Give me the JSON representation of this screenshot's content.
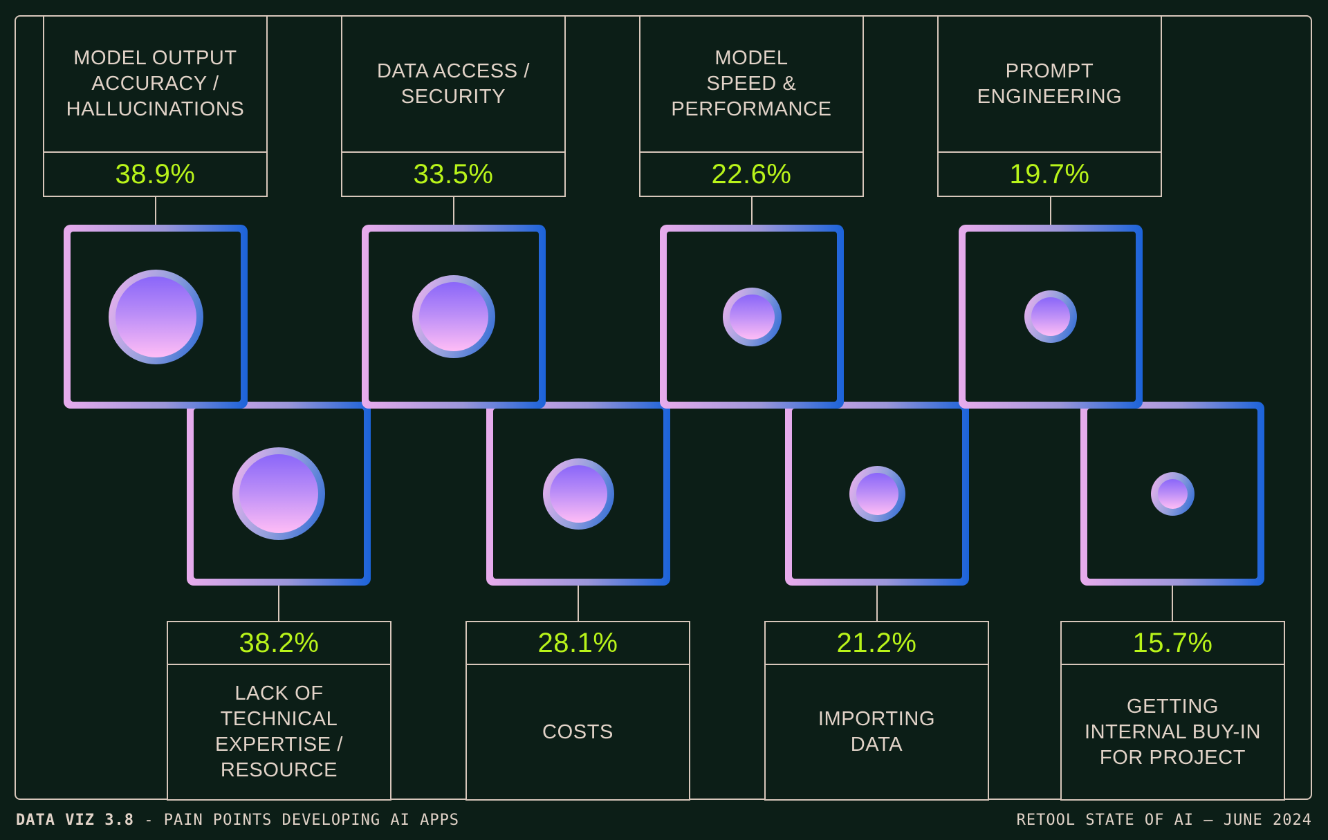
{
  "colors": {
    "background": "#0c1e17",
    "line_beige": "#d8c7bb",
    "text_beige": "#e2d3c8",
    "accent_lime": "#b9f41a",
    "gradient_pink": "#e9aced",
    "gradient_blue": "#1b63da",
    "bubble_violet": "#8a66f9",
    "bubble_pink": "#ffbdf6"
  },
  "footer": {
    "left_bold": "DATA VIZ 3.8",
    "left_sep": " - ",
    "left_text": "PAIN POINTS DEVELOPING AI APPS",
    "right_text": "RETOOL STATE OF AI — JUNE 2024"
  },
  "chart_data": {
    "type": "proportional_area_circles",
    "title": "PAIN POINTS DEVELOPING AI APPS",
    "source": "RETOOL STATE OF AI — JUNE 2024",
    "unit": "%",
    "layout": "two staggered rows of gradient squares, circle area scaled to value, top row labels above, bottom row labels below",
    "items": [
      {
        "label": "MODEL OUTPUT\nACCURACY /\nHALLUCINATIONS",
        "percent_label": "38.9%",
        "value": 38.9,
        "row": "top"
      },
      {
        "label": "DATA ACCESS /\nSECURITY",
        "percent_label": "33.5%",
        "value": 33.5,
        "row": "top"
      },
      {
        "label": "MODEL\nSPEED &\nPERFORMANCE",
        "percent_label": "22.6%",
        "value": 22.6,
        "row": "top"
      },
      {
        "label": "PROMPT\nENGINEERING",
        "percent_label": "19.7%",
        "value": 19.7,
        "row": "top"
      },
      {
        "label": "LACK OF\nTECHNICAL\nEXPERTISE /\nRESOURCE",
        "percent_label": "38.2%",
        "value": 38.2,
        "row": "bottom"
      },
      {
        "label": "COSTS",
        "percent_label": "28.1%",
        "value": 28.1,
        "row": "bottom"
      },
      {
        "label": "IMPORTING\nDATA",
        "percent_label": "21.2%",
        "value": 21.2,
        "row": "bottom"
      },
      {
        "label": "GETTING\nINTERNAL BUY-IN\nFOR PROJECT",
        "percent_label": "15.7%",
        "value": 15.7,
        "row": "bottom"
      }
    ]
  }
}
